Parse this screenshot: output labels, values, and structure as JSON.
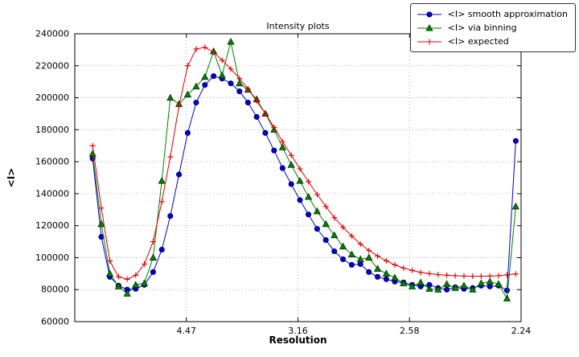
{
  "chart_data": {
    "type": "line",
    "title": "Intensity plots",
    "xlabel": "Resolution",
    "ylabel": "<I>",
    "xlim": [
      0,
      0.2
    ],
    "ylim": [
      60000,
      240000
    ],
    "grid": true,
    "grid_style": "dotted",
    "legend_position": "upper right",
    "xticks": [
      {
        "value": 0.05,
        "label": "4.47"
      },
      {
        "value": 0.1,
        "label": "3.16"
      },
      {
        "value": 0.15,
        "label": "2.58"
      },
      {
        "value": 0.2,
        "label": "2.24"
      }
    ],
    "yticks": [
      {
        "value": 60000,
        "label": "60000"
      },
      {
        "value": 80000,
        "label": "80000"
      },
      {
        "value": 100000,
        "label": "100000"
      },
      {
        "value": 120000,
        "label": "120000"
      },
      {
        "value": 140000,
        "label": "140000"
      },
      {
        "value": 160000,
        "label": "160000"
      },
      {
        "value": 180000,
        "label": "180000"
      },
      {
        "value": 200000,
        "label": "200000"
      },
      {
        "value": 220000,
        "label": "220000"
      },
      {
        "value": 240000,
        "label": "240000"
      }
    ],
    "x": [
      0.008,
      0.0119,
      0.0157,
      0.0196,
      0.0235,
      0.0273,
      0.0312,
      0.0351,
      0.039,
      0.0428,
      0.0467,
      0.0506,
      0.0544,
      0.0583,
      0.0622,
      0.066,
      0.0699,
      0.0738,
      0.0776,
      0.0815,
      0.0854,
      0.0893,
      0.0931,
      0.097,
      0.1009,
      0.1047,
      0.1086,
      0.1125,
      0.1163,
      0.1202,
      0.1241,
      0.128,
      0.1318,
      0.1357,
      0.1396,
      0.1434,
      0.1473,
      0.1512,
      0.155,
      0.1589,
      0.1628,
      0.1667,
      0.1705,
      0.1744,
      0.1783,
      0.1821,
      0.186,
      0.1899,
      0.1937,
      0.1976
    ],
    "series": [
      {
        "id": "smooth",
        "name": "<I> smooth approximation",
        "color": "#0000cc",
        "marker": "circle",
        "y": [
          162000,
          113000,
          88000,
          82500,
          80000,
          80500,
          83000,
          91000,
          105000,
          126000,
          152000,
          178000,
          197000,
          208000,
          213500,
          212000,
          209000,
          204000,
          197000,
          188000,
          178000,
          167000,
          156000,
          146000,
          136000,
          127000,
          118000,
          111000,
          104000,
          99000,
          95500,
          96000,
          91000,
          88000,
          86500,
          85000,
          84500,
          83000,
          82000,
          83000,
          81000,
          80000,
          81500,
          80500,
          81000,
          82500,
          82000,
          82500,
          79500,
          173000
        ]
      },
      {
        "id": "binning",
        "name": "<I> via binning",
        "color": "#008000",
        "marker": "triangle",
        "y": [
          165000,
          121000,
          90000,
          82000,
          77500,
          83000,
          84000,
          100000,
          148000,
          200000,
          196000,
          202000,
          207000,
          213000,
          229000,
          214000,
          235000,
          209000,
          205000,
          199000,
          190000,
          180000,
          169000,
          158000,
          148000,
          138000,
          129000,
          121000,
          114000,
          107000,
          102000,
          99000,
          100000,
          93000,
          90000,
          87500,
          84000,
          82000,
          84500,
          80500,
          80000,
          83500,
          81000,
          82500,
          80000,
          84000,
          85000,
          83500,
          74500,
          132000
        ]
      },
      {
        "id": "expected",
        "name": "<I> expected",
        "color": "#dd0000",
        "marker": "plus",
        "y": [
          170000,
          131000,
          98000,
          88000,
          86500,
          89000,
          96000,
          110000,
          135000,
          163000,
          195000,
          220000,
          230500,
          231500,
          228500,
          223500,
          218000,
          212000,
          205500,
          198000,
          190000,
          181500,
          172500,
          164000,
          155500,
          147500,
          139500,
          132000,
          125000,
          119000,
          113500,
          108500,
          104500,
          101000,
          98000,
          95500,
          93500,
          92000,
          90800,
          90000,
          89400,
          89000,
          88700,
          88500,
          88400,
          88400,
          88500,
          88700,
          89200,
          89800
        ]
      }
    ]
  }
}
